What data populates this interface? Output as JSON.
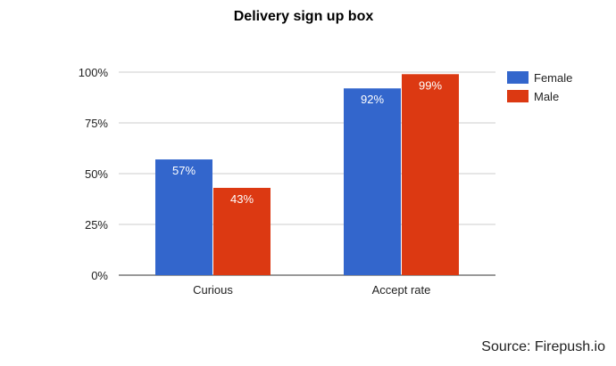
{
  "chart_data": {
    "type": "bar",
    "title": "Delivery sign up box",
    "xlabel": "",
    "ylabel": "",
    "categories": [
      "Curious",
      "Accept rate"
    ],
    "series": [
      {
        "name": "Female",
        "color": "#3366cc",
        "values": [
          57,
          92
        ],
        "labels": [
          "57%",
          "92%"
        ]
      },
      {
        "name": "Male",
        "color": "#dc3912",
        "values": [
          43,
          99
        ],
        "labels": [
          "43%",
          "99%"
        ]
      }
    ],
    "ylim": [
      0,
      100
    ],
    "yticks": [
      0,
      25,
      50,
      75,
      100
    ],
    "ytick_labels": [
      "0%",
      "25%",
      "50%",
      "75%",
      "100%"
    ],
    "grid": true,
    "legend_position": "right"
  },
  "source": "Source: Firepush.io"
}
